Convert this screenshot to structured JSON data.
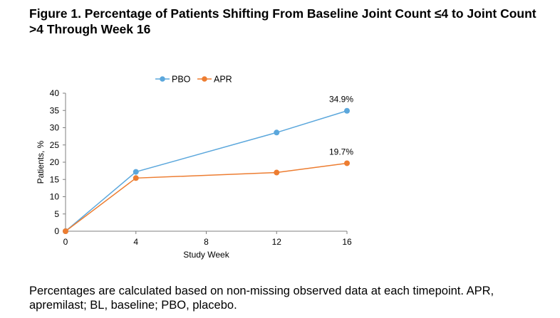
{
  "figure": {
    "title": "Figure 1. Percentage of Patients Shifting From Baseline Joint Count ≤4 to Joint Count >4 Through Week 16",
    "footnote": "Percentages are calculated based on non-missing observed data at each timepoint. APR, apremilast; BL, baseline; PBO, placebo."
  },
  "chart_data": {
    "type": "line",
    "title": "",
    "xlabel": "Study Week",
    "ylabel": "Patients, %",
    "xlim": [
      0,
      16
    ],
    "ylim": [
      0,
      40
    ],
    "xticks": [
      0,
      4,
      8,
      12,
      16
    ],
    "yticks": [
      0,
      5,
      10,
      15,
      20,
      25,
      30,
      35,
      40
    ],
    "grid": false,
    "legend_position": "top",
    "series": [
      {
        "name": "PBO",
        "color": "#5BA7DC",
        "x": [
          0,
          4,
          12,
          16
        ],
        "y": [
          0,
          17.2,
          28.6,
          34.9
        ],
        "end_label": "34.9%"
      },
      {
        "name": "APR",
        "color": "#ED7D31",
        "x": [
          0,
          4,
          12,
          16
        ],
        "y": [
          0,
          15.4,
          17.0,
          19.7
        ],
        "end_label": "19.7%"
      }
    ]
  }
}
